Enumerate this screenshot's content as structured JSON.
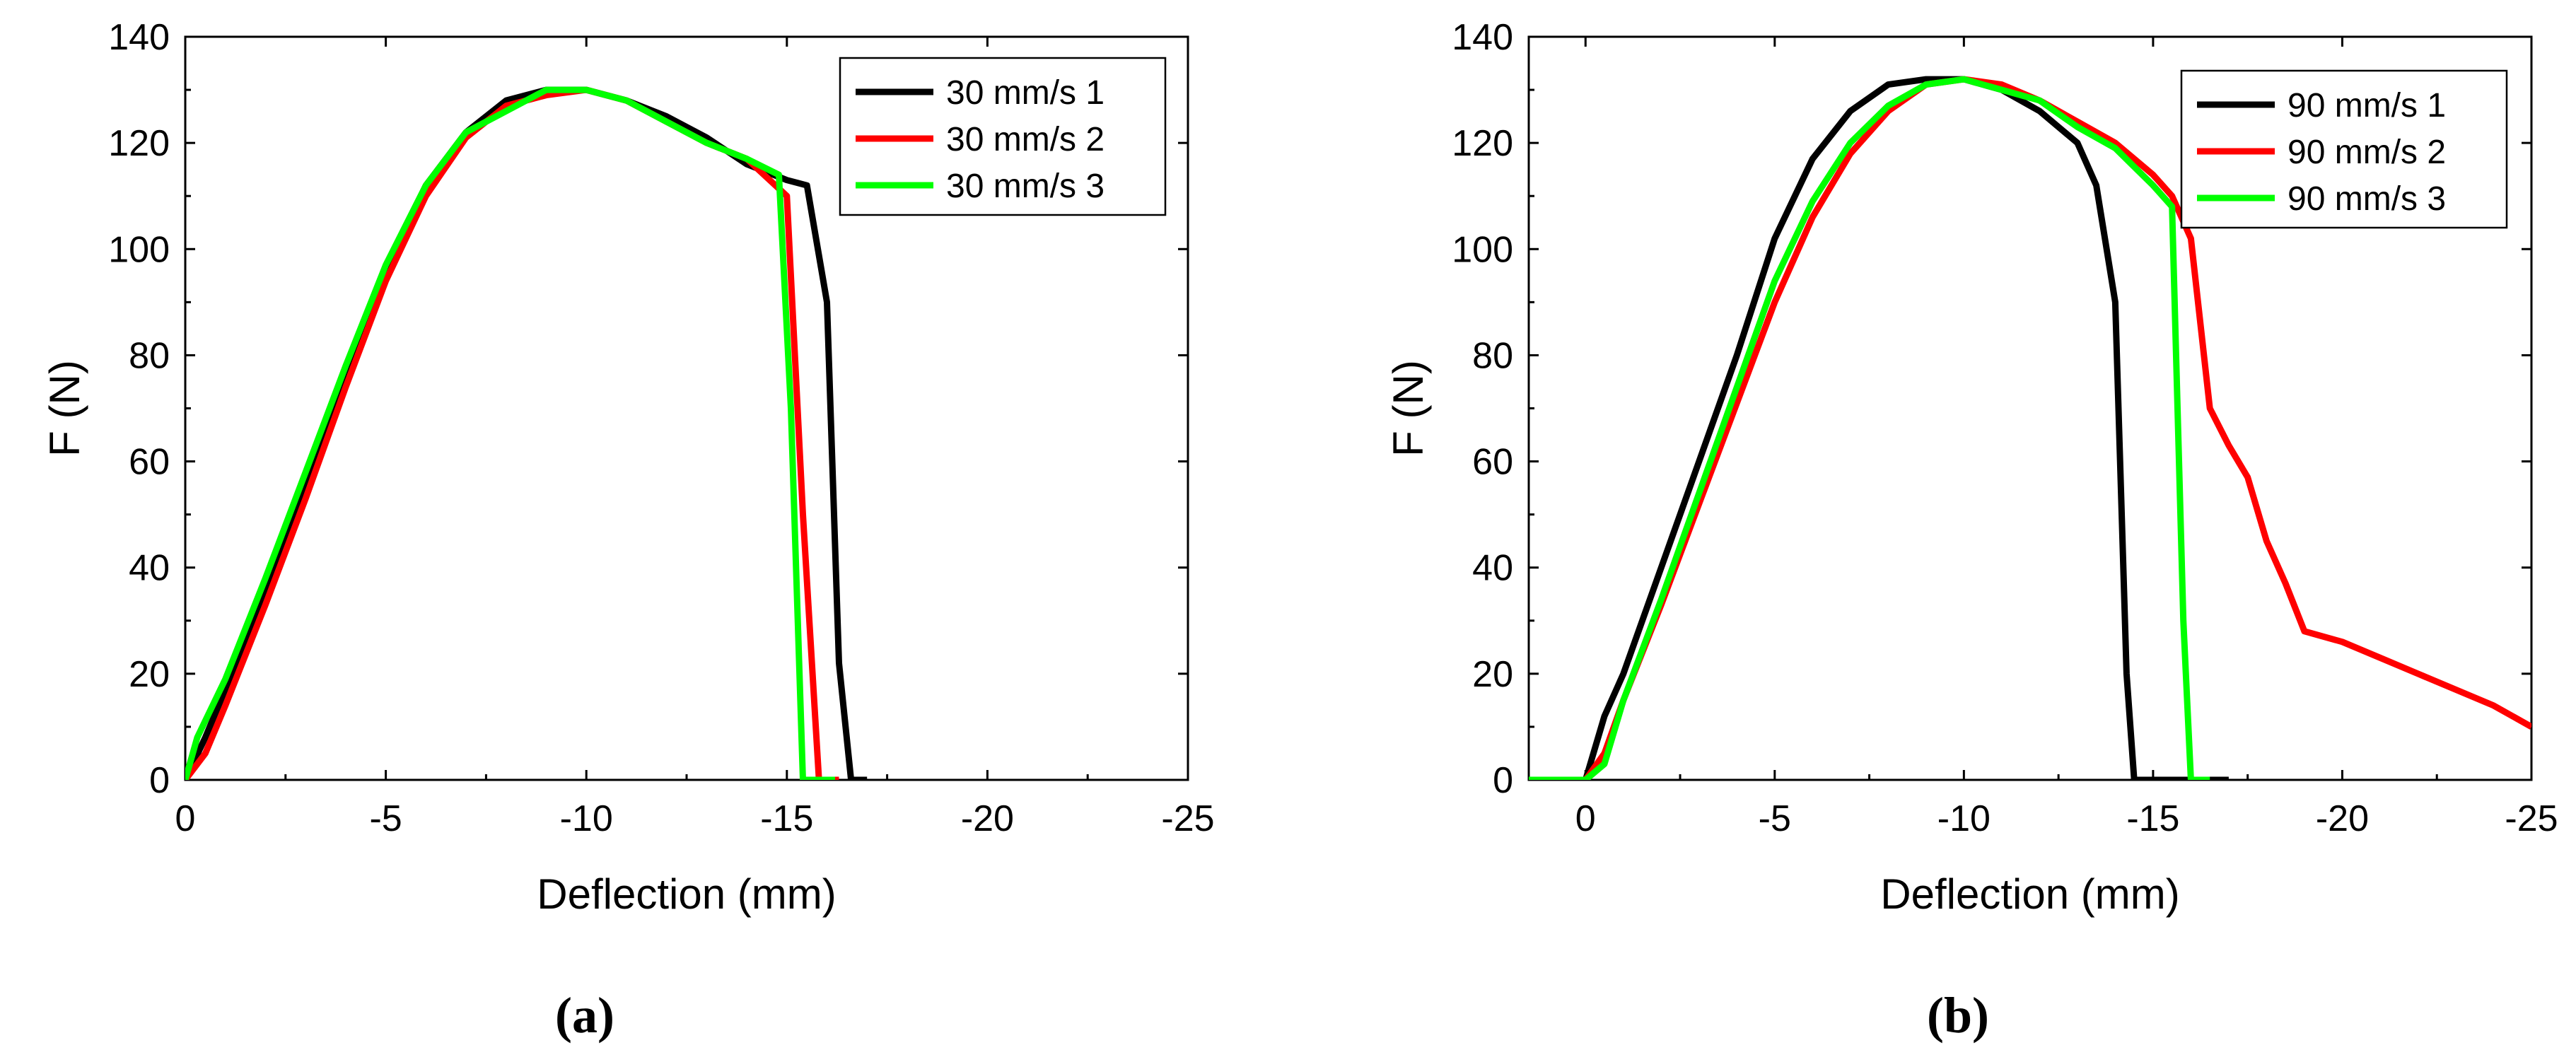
{
  "captions": {
    "a": "(a)",
    "b": "(b)"
  },
  "chart_data": [
    {
      "type": "line",
      "panel": "a",
      "xlabel": "Deflection (mm)",
      "ylabel": "F (N)",
      "xlim": [
        0,
        -25
      ],
      "xlim_note_reversed": true,
      "ylim": [
        0,
        140
      ],
      "xticks": [
        0,
        -5,
        -10,
        -15,
        -20,
        -25
      ],
      "yticks": [
        0,
        20,
        40,
        60,
        80,
        100,
        120,
        140
      ],
      "grid": false,
      "legend_position": "top-right",
      "series": [
        {
          "name": "30 mm/s 1",
          "color": "#000000",
          "x": [
            0,
            -0.5,
            -1,
            -2,
            -3,
            -4,
            -5,
            -6,
            -7,
            -8,
            -9,
            -10,
            -11,
            -12,
            -13,
            -14,
            -15,
            -15.5,
            -16,
            -16.3,
            -16.6,
            -17
          ],
          "y": [
            0,
            8,
            17,
            36,
            56,
            76,
            96,
            112,
            122,
            128,
            130,
            130,
            128,
            125,
            121,
            116,
            113,
            112,
            90,
            22,
            0,
            0
          ]
        },
        {
          "name": "30 mm/s 2",
          "color": "#ff0000",
          "x": [
            0,
            -0.5,
            -1,
            -2,
            -3,
            -4,
            -5,
            -6,
            -7,
            -8,
            -9,
            -10,
            -11,
            -12,
            -13,
            -14,
            -15,
            -15.4,
            -15.8,
            -16.3
          ],
          "y": [
            0,
            5,
            14,
            33,
            53,
            74,
            94,
            110,
            121,
            127,
            129,
            130,
            128,
            124,
            120,
            117,
            110,
            50,
            0,
            0
          ]
        },
        {
          "name": "30 mm/s 3",
          "color": "#00ff00",
          "x": [
            0,
            -0.3,
            -1,
            -2,
            -3,
            -4,
            -5,
            -6,
            -7,
            -8,
            -9,
            -10,
            -11,
            -12,
            -13,
            -14,
            -14.8,
            -15.1,
            -15.4,
            -16.2
          ],
          "y": [
            0,
            8,
            19,
            38,
            58,
            78,
            97,
            112,
            122,
            126,
            130,
            130,
            128,
            124,
            120,
            117,
            114,
            70,
            0,
            0
          ]
        }
      ]
    },
    {
      "type": "line",
      "panel": "b",
      "xlabel": "Deflection (mm)",
      "ylabel": "F (N)",
      "xlim": [
        1.5,
        -25
      ],
      "xlim_note_reversed": true,
      "ylim": [
        0,
        140
      ],
      "xticks": [
        0,
        -5,
        -10,
        -15,
        -20,
        -25
      ],
      "yticks": [
        0,
        20,
        40,
        60,
        80,
        100,
        120,
        140
      ],
      "grid": false,
      "legend_position": "top-right",
      "series": [
        {
          "name": "90 mm/s 1",
          "color": "#000000",
          "x": [
            1.5,
            0,
            -0.5,
            -1,
            -2,
            -3,
            -4,
            -5,
            -6,
            -7,
            -8,
            -9,
            -10,
            -11,
            -12,
            -13,
            -13.5,
            -14,
            -14.3,
            -14.5,
            -17
          ],
          "y": [
            0,
            0,
            12,
            20,
            40,
            60,
            80,
            102,
            117,
            126,
            131,
            132,
            132,
            130,
            126,
            120,
            112,
            90,
            20,
            0,
            0
          ]
        },
        {
          "name": "90 mm/s 2",
          "color": "#ff0000",
          "x": [
            1.5,
            0,
            -0.5,
            -1,
            -2,
            -3,
            -4,
            -5,
            -6,
            -7,
            -8,
            -9,
            -10,
            -11,
            -12,
            -13,
            -14,
            -15,
            -15.5,
            -16,
            -16.5,
            -17,
            -17.5,
            -18,
            -18.5,
            -19,
            -20,
            -21,
            -22,
            -23,
            -24,
            -25
          ],
          "y": [
            0,
            0,
            5,
            15,
            33,
            52,
            71,
            90,
            106,
            118,
            126,
            131,
            132,
            131,
            128,
            124,
            120,
            114,
            110,
            102,
            70,
            63,
            57,
            45,
            37,
            28,
            26,
            23,
            20,
            17,
            14,
            10
          ]
        },
        {
          "name": "90 mm/s 3",
          "color": "#00ff00",
          "x": [
            1.5,
            0,
            -0.5,
            -1,
            -2,
            -3,
            -4,
            -5,
            -6,
            -7,
            -8,
            -9,
            -10,
            -11,
            -12,
            -13,
            -14,
            -15,
            -15.5,
            -15.8,
            -16,
            -16.5
          ],
          "y": [
            0,
            0,
            3,
            15,
            34,
            54,
            74,
            94,
            109,
            120,
            127,
            131,
            132,
            130,
            128,
            123,
            119,
            112,
            108,
            30,
            0,
            0
          ]
        }
      ]
    }
  ]
}
